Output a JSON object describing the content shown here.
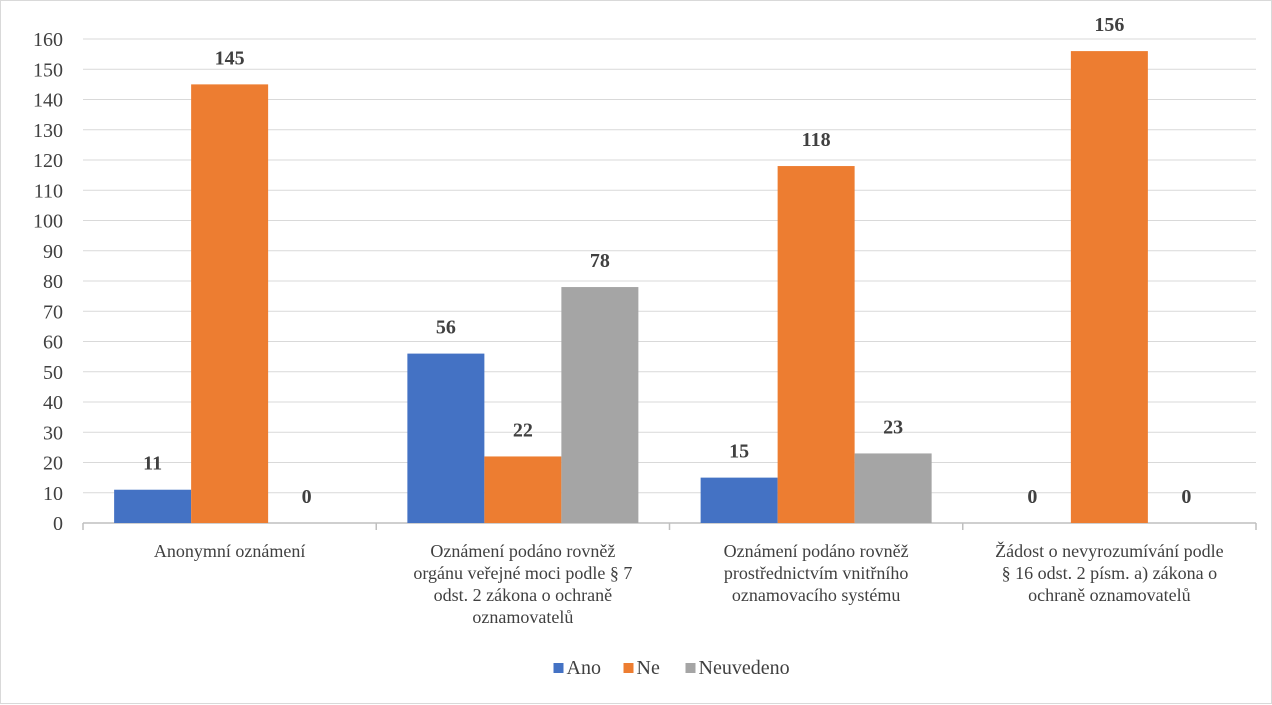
{
  "chart_data": {
    "type": "bar",
    "title": "",
    "xlabel": "",
    "ylabel": "",
    "ylim": [
      0,
      160
    ],
    "ytick_step": 10,
    "grid": true,
    "legend_position": "bottom",
    "categories": [
      [
        "Anonymní oznámení"
      ],
      [
        "Oznámení podáno rovněž",
        "orgánu veřejné moci podle § 7",
        "odst. 2 zákona o ochraně",
        "oznamovatelů"
      ],
      [
        "Oznámení podáno rovněž",
        "prostřednictvím vnitřního",
        "oznamovacího systému"
      ],
      [
        "Žádost o nevyrozumívání podle",
        "§ 16 odst. 2 písm. a) zákona o",
        "ochraně oznamovatelů"
      ]
    ],
    "series": [
      {
        "name": "Ano",
        "color": "#4472c4",
        "values": [
          11,
          56,
          15,
          0
        ]
      },
      {
        "name": "Ne",
        "color": "#ed7d31",
        "values": [
          145,
          22,
          118,
          156
        ]
      },
      {
        "name": "Neuvedeno",
        "color": "#a5a5a5",
        "values": [
          0,
          78,
          23,
          0
        ]
      }
    ]
  }
}
